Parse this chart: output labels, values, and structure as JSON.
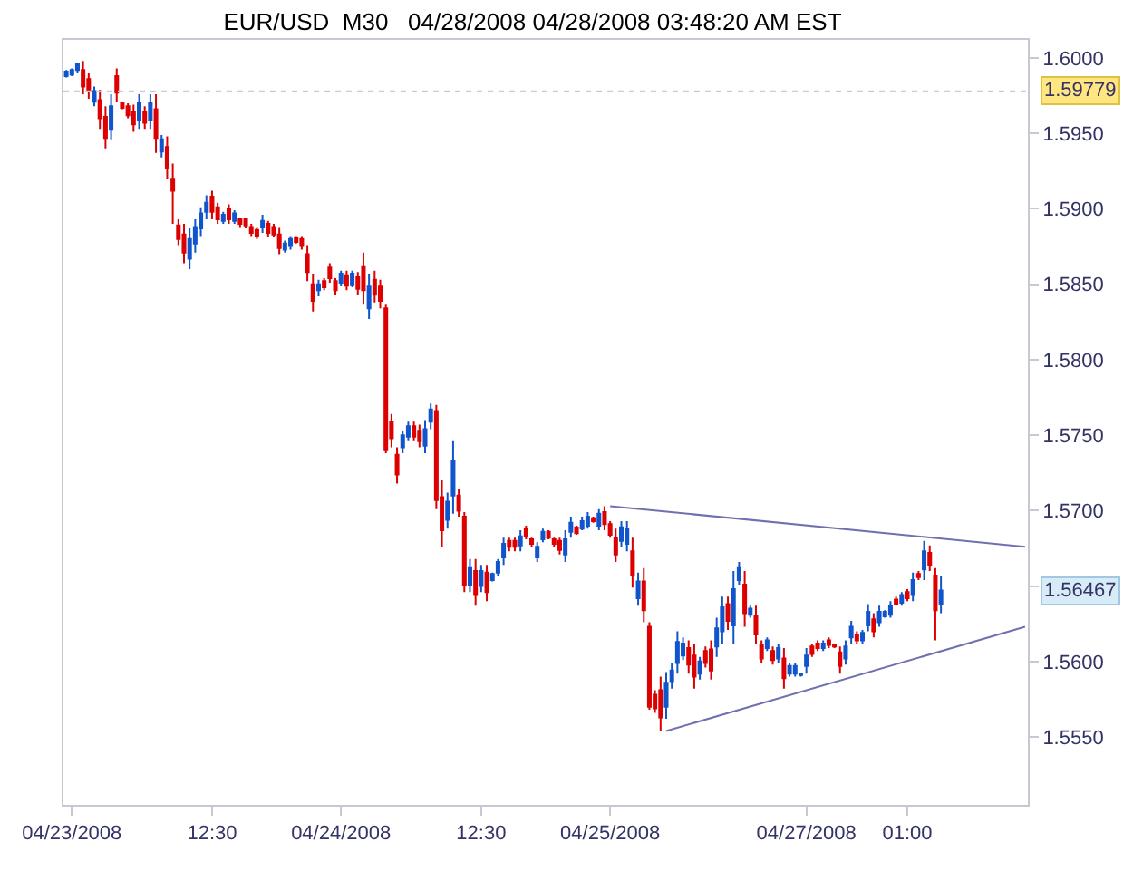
{
  "chart_data": {
    "type": "candlestick",
    "title": "EUR/USD  M30   04/28/2008 04/28/2008 03:48:20 AM EST",
    "colors": [
      "#1155cc",
      "#1155cc",
      "#1155cc",
      "#dd0000",
      "#dd0000",
      "#1155cc",
      "#dd0000",
      "#dd0000",
      "#1155cc",
      "#dd0000",
      "#dd0000",
      "#dd0000",
      "#dd0000",
      "#1155cc",
      "#dd0000",
      "#1155cc",
      "#dd0000",
      "#1155cc",
      "#dd0000",
      "#dd0000",
      "#dd0000",
      "#dd0000",
      "#1155cc",
      "#1155cc",
      "#1155cc",
      "#1155cc",
      "#dd0000",
      "#dd0000",
      "#1155cc",
      "#dd0000",
      "#1155cc",
      "#dd0000",
      "#dd0000",
      "#dd0000",
      "#dd0000",
      "#1155cc",
      "#dd0000",
      "#dd0000",
      "#dd0000",
      "#1155cc",
      "#1155cc",
      "#dd0000",
      "#dd0000",
      "#dd0000",
      "#dd0000",
      "#1155cc",
      "#dd0000",
      "#dd0000",
      "#dd0000",
      "#1155cc",
      "#dd0000",
      "#1155cc",
      "#dd0000",
      "#dd0000",
      "#1155cc",
      "#dd0000",
      "#dd0000",
      "#dd0000",
      "#dd0000",
      "#dd0000",
      "#1155cc",
      "#1155cc",
      "#dd0000",
      "#dd0000",
      "#1155cc",
      "#1155cc",
      "#dd0000",
      "#dd0000",
      "#1155cc",
      "#1155cc",
      "#dd0000",
      "#dd0000",
      "#1155cc",
      "#dd0000",
      "#1155cc",
      "#dd0000",
      "#1155cc",
      "#1155cc",
      "#1155cc",
      "#dd0000",
      "#dd0000",
      "#1155cc",
      "#dd0000",
      "#dd0000",
      "#1155cc",
      "#1155cc",
      "#dd0000",
      "#dd0000",
      "#dd0000",
      "#1155cc",
      "#1155cc",
      "#dd0000",
      "#1155cc",
      "#1155cc",
      "#dd0000",
      "#1155cc",
      "#dd0000",
      "#dd0000",
      "#dd0000",
      "#1155cc",
      "#1155cc",
      "#dd0000",
      "#1155cc",
      "#dd0000",
      "#dd0000",
      "#dd0000",
      "#dd0000",
      "#1155cc",
      "#1155cc",
      "#1155cc",
      "#1155cc",
      "#dd0000",
      "#dd0000",
      "#1155cc",
      "#dd0000",
      "#dd0000",
      "#1155cc",
      "#1155cc",
      "#dd0000",
      "#1155cc",
      "#1155cc",
      "#dd0000",
      "#1155cc",
      "#dd0000",
      "#dd0000",
      "#1155cc",
      "#dd0000",
      "#1155cc",
      "#dd0000",
      "#1155cc",
      "#1155cc",
      "#1155cc",
      "#1155cc",
      "#dd0000",
      "#dd0000",
      "#1155cc",
      "#dd0000",
      "#dd0000",
      "#dd0000",
      "#1155cc",
      "#1155cc",
      "#dd0000",
      "#1155cc",
      "#1155cc",
      "#dd0000",
      "#1155cc",
      "#1155cc",
      "#1155cc",
      "#dd0000",
      "#1155cc",
      "#dd0000",
      "#1155cc",
      "#dd0000",
      "#1155cc",
      "#dd0000",
      "#dd0000",
      "#1155cc",
      null,
      null,
      null,
      null,
      null,
      null,
      null,
      null,
      null,
      null,
      null,
      null,
      null,
      null,
      null
    ],
    "categories": [
      null,
      "04/23/2008",
      null,
      null,
      null,
      null,
      null,
      null,
      null,
      null,
      null,
      null,
      null,
      null,
      null,
      null,
      null,
      null,
      null,
      null,
      null,
      null,
      null,
      null,
      null,
      null,
      "12:30",
      null,
      null,
      null,
      null,
      null,
      null,
      null,
      null,
      null,
      null,
      null,
      null,
      null,
      null,
      null,
      null,
      null,
      null,
      null,
      null,
      null,
      null,
      "04/24/2008",
      null,
      null,
      null,
      null,
      null,
      null,
      null,
      null,
      null,
      null,
      null,
      null,
      null,
      null,
      null,
      null,
      null,
      null,
      null,
      null,
      null,
      null,
      null,
      null,
      "12:30",
      null,
      null,
      null,
      null,
      null,
      null,
      null,
      null,
      null,
      null,
      null,
      null,
      null,
      null,
      null,
      null,
      null,
      null,
      null,
      null,
      null,
      null,
      "04/25/2008",
      null,
      null,
      null,
      null,
      null,
      null,
      null,
      null,
      null,
      null,
      null,
      null,
      null,
      null,
      null,
      null,
      null,
      null,
      null,
      null,
      null,
      null,
      null,
      null,
      null,
      null,
      null,
      null,
      null,
      null,
      null,
      null,
      null,
      null,
      "04/27/2008",
      null,
      null,
      null,
      null,
      null,
      null,
      null,
      null,
      null,
      null,
      null,
      null,
      null,
      null,
      null,
      null,
      null,
      "01:00",
      null,
      null,
      null,
      null,
      null,
      null,
      null,
      null,
      null,
      null,
      null,
      null,
      null,
      null,
      null,
      null,
      null,
      null,
      null,
      null,
      null
    ],
    "ohlc": [
      [
        1.5988,
        1.5992,
        1.5987,
        1.5991
      ],
      [
        1.5989,
        1.5993,
        1.5988,
        1.5992
      ],
      [
        1.5992,
        1.5997,
        1.599,
        1.5996
      ],
      [
        1.5992,
        1.5998,
        1.5976,
        1.5981
      ],
      [
        1.5986,
        1.599,
        1.5973,
        1.5978
      ],
      [
        1.5971,
        1.5981,
        1.5968,
        1.5978
      ],
      [
        1.5972,
        1.5979,
        1.5953,
        1.596
      ],
      [
        1.5961,
        1.5968,
        1.594,
        1.5947
      ],
      [
        1.5953,
        1.5976,
        1.5946,
        1.5968
      ],
      [
        1.5988,
        1.5993,
        1.5971,
        1.5977
      ],
      [
        1.597,
        1.5971,
        1.5966,
        1.5967
      ],
      [
        1.5968,
        1.597,
        1.596,
        1.5962
      ],
      [
        1.5964,
        1.5969,
        1.5951,
        1.5956
      ],
      [
        1.5959,
        1.5976,
        1.5953,
        1.597
      ],
      [
        1.5964,
        1.5968,
        1.5953,
        1.5957
      ],
      [
        1.5959,
        1.5976,
        1.5953,
        1.597
      ],
      [
        1.5966,
        1.5976,
        1.5937,
        1.5947
      ],
      [
        1.5938,
        1.5949,
        1.5934,
        1.5946
      ],
      [
        1.5941,
        1.5948,
        1.592,
        1.5927
      ],
      [
        1.592,
        1.593,
        1.589,
        1.5912
      ],
      [
        1.5889,
        1.5893,
        1.5876,
        1.588
      ],
      [
        1.5883,
        1.589,
        1.5864,
        1.5871
      ],
      [
        1.5867,
        1.5887,
        1.586,
        1.588
      ],
      [
        1.5877,
        1.5893,
        1.5871,
        1.5888
      ],
      [
        1.5887,
        1.5901,
        1.5882,
        1.5897
      ],
      [
        1.5898,
        1.5909,
        1.5893,
        1.5904
      ],
      [
        1.5908,
        1.5912,
        1.5893,
        1.5898
      ],
      [
        1.5901,
        1.5904,
        1.589,
        1.5893
      ],
      [
        1.5892,
        1.5898,
        1.589,
        1.5896
      ],
      [
        1.59,
        1.5903,
        1.589,
        1.5893
      ],
      [
        1.5892,
        1.5899,
        1.589,
        1.5897
      ],
      [
        1.5893,
        1.5894,
        1.5888,
        1.589
      ],
      [
        1.5893,
        1.5894,
        1.5887,
        1.5889
      ],
      [
        1.5888,
        1.589,
        1.5882,
        1.5884
      ],
      [
        1.5886,
        1.5888,
        1.588,
        1.5882
      ],
      [
        1.5888,
        1.5896,
        1.5884,
        1.5892
      ],
      [
        1.589,
        1.5892,
        1.5881,
        1.5884
      ],
      [
        1.5888,
        1.589,
        1.5881,
        1.5883
      ],
      [
        1.5883,
        1.5888,
        1.587,
        1.5874
      ],
      [
        1.5873,
        1.5879,
        1.5871,
        1.5877
      ],
      [
        1.5876,
        1.5882,
        1.5873,
        1.588
      ],
      [
        1.5881,
        1.5882,
        1.5877,
        1.5878
      ],
      [
        1.588,
        1.5882,
        1.5873,
        1.5876
      ],
      [
        1.587,
        1.5876,
        1.5852,
        1.5858
      ],
      [
        1.585,
        1.5857,
        1.5832,
        1.5839
      ],
      [
        1.5846,
        1.5853,
        1.5842,
        1.585
      ],
      [
        1.5852,
        1.5854,
        1.5846,
        1.5848
      ],
      [
        1.5861,
        1.5864,
        1.5851,
        1.5854
      ],
      [
        1.5852,
        1.5854,
        1.5843,
        1.5846
      ],
      [
        1.5851,
        1.5859,
        1.5849,
        1.5857
      ],
      [
        1.5856,
        1.5859,
        1.5846,
        1.5849
      ],
      [
        1.585,
        1.5859,
        1.5848,
        1.5857
      ],
      [
        1.5855,
        1.5858,
        1.5843,
        1.5847
      ],
      [
        1.5862,
        1.5871,
        1.5837,
        1.5846
      ],
      [
        1.5834,
        1.5857,
        1.5827,
        1.5849
      ],
      [
        1.5853,
        1.5859,
        1.5838,
        1.5843
      ],
      [
        1.5849,
        1.5853,
        1.5834,
        1.5839
      ],
      [
        1.5834,
        1.5837,
        1.5738,
        1.574
      ],
      [
        1.5759,
        1.5764,
        1.5742,
        1.5748
      ],
      [
        1.5737,
        1.5742,
        1.5718,
        1.5724
      ],
      [
        1.5742,
        1.5753,
        1.5738,
        1.575
      ],
      [
        1.5749,
        1.5759,
        1.5746,
        1.5756
      ],
      [
        1.5756,
        1.5759,
        1.5746,
        1.5749
      ],
      [
        1.5753,
        1.5757,
        1.5742,
        1.5746
      ],
      [
        1.5743,
        1.576,
        1.5738,
        1.5754
      ],
      [
        1.5759,
        1.5771,
        1.5754,
        1.5767
      ],
      [
        1.5766,
        1.577,
        1.5701,
        1.5707
      ],
      [
        1.5709,
        1.572,
        1.5676,
        1.5687
      ],
      [
        1.5694,
        1.5712,
        1.5688,
        1.5706
      ],
      [
        1.571,
        1.5746,
        1.5698,
        1.5733
      ],
      [
        1.571,
        1.5714,
        1.5696,
        1.57
      ],
      [
        1.5696,
        1.5699,
        1.5646,
        1.5651
      ],
      [
        1.5651,
        1.5668,
        1.5646,
        1.5662
      ],
      [
        1.566,
        1.5668,
        1.5637,
        1.5644
      ],
      [
        1.565,
        1.5664,
        1.5646,
        1.566
      ],
      [
        1.5659,
        1.5664,
        1.564,
        1.5646
      ],
      [
        1.5654,
        1.5659,
        1.5653,
        1.5658
      ],
      [
        1.5659,
        1.5668,
        1.5657,
        1.5666
      ],
      [
        1.5669,
        1.5682,
        1.5664,
        1.5678
      ],
      [
        1.568,
        1.5682,
        1.5673,
        1.5676
      ],
      [
        1.568,
        1.5682,
        1.5673,
        1.5676
      ],
      [
        1.5677,
        1.5687,
        1.5673,
        1.5683
      ],
      [
        1.5688,
        1.569,
        1.5681,
        1.5683
      ],
      [
        1.5681,
        1.5682,
        1.5676,
        1.5678
      ],
      [
        1.5669,
        1.5679,
        1.5666,
        1.5676
      ],
      [
        1.5681,
        1.5688,
        1.5679,
        1.5686
      ],
      [
        1.5686,
        1.5687,
        1.5681,
        1.5682
      ],
      [
        1.5681,
        1.5682,
        1.5676,
        1.5678
      ],
      [
        1.568,
        1.5682,
        1.5671,
        1.5674
      ],
      [
        1.5671,
        1.5687,
        1.5666,
        1.5681
      ],
      [
        1.5686,
        1.5696,
        1.5682,
        1.5692
      ],
      [
        1.5689,
        1.569,
        1.5684,
        1.5685
      ],
      [
        1.5688,
        1.5696,
        1.5687,
        1.5693
      ],
      [
        1.569,
        1.5699,
        1.5688,
        1.5696
      ],
      [
        1.5695,
        1.5696,
        1.5692,
        1.5693
      ],
      [
        1.569,
        1.5701,
        1.5687,
        1.5698
      ],
      [
        1.5699,
        1.5703,
        1.5687,
        1.5691
      ],
      [
        1.5691,
        1.5693,
        1.5682,
        1.5684
      ],
      [
        1.5682,
        1.5688,
        1.5666,
        1.5671
      ],
      [
        1.568,
        1.5693,
        1.5676,
        1.5689
      ],
      [
        1.5678,
        1.5693,
        1.5673,
        1.5688
      ],
      [
        1.5673,
        1.5682,
        1.5649,
        1.5657
      ],
      [
        1.5642,
        1.5659,
        1.5637,
        1.5653
      ],
      [
        1.5653,
        1.5662,
        1.5626,
        1.5634
      ],
      [
        1.5623,
        1.5626,
        1.5568,
        1.557
      ],
      [
        1.5578,
        1.5581,
        1.5566,
        1.5569
      ],
      [
        1.5581,
        1.559,
        1.5554,
        1.5563
      ],
      [
        1.557,
        1.5593,
        1.5562,
        1.5586
      ],
      [
        1.5587,
        1.5599,
        1.5582,
        1.5594
      ],
      [
        1.5599,
        1.562,
        1.5592,
        1.5613
      ],
      [
        1.5604,
        1.5616,
        1.5601,
        1.5612
      ],
      [
        1.5609,
        1.5614,
        1.5592,
        1.5598
      ],
      [
        1.5604,
        1.5612,
        1.5582,
        1.559
      ],
      [
        1.5592,
        1.5603,
        1.5588,
        1.56
      ],
      [
        1.5607,
        1.561,
        1.5596,
        1.5599
      ],
      [
        1.5608,
        1.5614,
        1.5588,
        1.5594
      ],
      [
        1.561,
        1.5629,
        1.5603,
        1.5622
      ],
      [
        1.562,
        1.5643,
        1.5612,
        1.5636
      ],
      [
        1.5638,
        1.5643,
        1.5621,
        1.5627
      ],
      [
        1.5624,
        1.566,
        1.5612,
        1.5648
      ],
      [
        1.5654,
        1.5666,
        1.5651,
        1.5662
      ],
      [
        1.5651,
        1.566,
        1.5623,
        1.5632
      ],
      [
        1.5631,
        1.5637,
        1.5629,
        1.5635
      ],
      [
        1.563,
        1.5637,
        1.5612,
        1.5618
      ],
      [
        1.5611,
        1.5614,
        1.5599,
        1.5602
      ],
      [
        1.5609,
        1.5616,
        1.5607,
        1.5614
      ],
      [
        1.5607,
        1.561,
        1.5598,
        1.5601
      ],
      [
        1.5602,
        1.5612,
        1.5599,
        1.5609
      ],
      [
        1.5602,
        1.5609,
        1.5582,
        1.5589
      ],
      [
        1.5592,
        1.5599,
        1.559,
        1.5597
      ],
      [
        1.5592,
        1.5599,
        1.559,
        1.5597
      ],
      [
        1.5591,
        1.5592,
        1.559,
        1.5592
      ],
      [
        1.5597,
        1.5609,
        1.5592,
        1.5604
      ],
      [
        1.561,
        1.5612,
        1.5603,
        1.5605
      ],
      [
        1.5612,
        1.5614,
        1.5607,
        1.5609
      ],
      [
        1.5609,
        1.5614,
        1.5607,
        1.5612
      ],
      [
        1.5614,
        1.5616,
        1.5609,
        1.5611
      ],
      [
        1.5611,
        1.5612,
        1.5609,
        1.561
      ],
      [
        1.5606,
        1.561,
        1.5592,
        1.5597
      ],
      [
        1.5602,
        1.5614,
        1.5598,
        1.561
      ],
      [
        1.5616,
        1.5627,
        1.5612,
        1.5623
      ],
      [
        1.5618,
        1.562,
        1.5612,
        1.5614
      ],
      [
        1.5614,
        1.5621,
        1.5612,
        1.5619
      ],
      [
        1.5624,
        1.5638,
        1.562,
        1.5633
      ],
      [
        1.5628,
        1.5632,
        1.5616,
        1.562
      ],
      [
        1.5626,
        1.5637,
        1.5623,
        1.5633
      ],
      [
        1.563,
        1.5634,
        1.5629,
        1.5633
      ],
      [
        1.5631,
        1.564,
        1.5629,
        1.5637
      ],
      [
        1.5641,
        1.5643,
        1.5637,
        1.5638
      ],
      [
        1.5639,
        1.5646,
        1.5637,
        1.5644
      ],
      [
        1.5646,
        1.5648,
        1.564,
        1.5642
      ],
      [
        1.5644,
        1.5659,
        1.564,
        1.5654
      ],
      [
        1.5658,
        1.566,
        1.5654,
        1.5656
      ],
      [
        1.5661,
        1.568,
        1.5654,
        1.5673
      ],
      [
        1.5672,
        1.5677,
        1.566,
        1.5664
      ],
      [
        1.5657,
        1.5662,
        1.5614,
        1.5634
      ],
      [
        1.5638,
        1.5657,
        1.5632,
        1.5647
      ],
      null,
      null,
      null,
      null,
      null,
      null,
      null,
      null,
      null,
      null,
      null,
      null,
      null,
      null,
      null
    ],
    "series": [
      {
        "type": "line",
        "color": "#7070b0",
        "values": [
          null,
          null,
          null,
          null,
          null,
          null,
          null,
          null,
          null,
          null,
          null,
          null,
          null,
          null,
          null,
          null,
          null,
          null,
          null,
          null,
          null,
          null,
          null,
          null,
          null,
          null,
          null,
          null,
          null,
          null,
          null,
          null,
          null,
          null,
          null,
          null,
          null,
          null,
          null,
          null,
          null,
          null,
          null,
          null,
          null,
          null,
          null,
          null,
          null,
          null,
          null,
          null,
          null,
          null,
          null,
          null,
          null,
          null,
          null,
          null,
          null,
          null,
          null,
          null,
          null,
          null,
          null,
          null,
          null,
          null,
          null,
          null,
          null,
          null,
          null,
          null,
          null,
          null,
          null,
          null,
          null,
          null,
          null,
          null,
          null,
          null,
          null,
          null,
          null,
          null,
          null,
          null,
          null,
          null,
          null,
          null,
          null,
          1.5703,
          null,
          null,
          null,
          null,
          null,
          null,
          null,
          null,
          null,
          null,
          null,
          null,
          null,
          null,
          null,
          null,
          null,
          null,
          null,
          null,
          null,
          null,
          null,
          null,
          null,
          null,
          null,
          null,
          null,
          null,
          null,
          null,
          null,
          null,
          null,
          null,
          null,
          null,
          null,
          null,
          null,
          null,
          null,
          null,
          null,
          null,
          null,
          null,
          null,
          null,
          null,
          null,
          null,
          null,
          null,
          null,
          null,
          null,
          null,
          null,
          null,
          null,
          null,
          null,
          null,
          null,
          null,
          null,
          null,
          null,
          null,
          null,
          null,
          1.5676
        ]
      },
      {
        "type": "line",
        "color": "#7070b0",
        "values": [
          null,
          null,
          null,
          null,
          null,
          null,
          null,
          null,
          null,
          null,
          null,
          null,
          null,
          null,
          null,
          null,
          null,
          null,
          null,
          null,
          null,
          null,
          null,
          null,
          null,
          null,
          null,
          null,
          null,
          null,
          null,
          null,
          null,
          null,
          null,
          null,
          null,
          null,
          null,
          null,
          null,
          null,
          null,
          null,
          null,
          null,
          null,
          null,
          null,
          null,
          null,
          null,
          null,
          null,
          null,
          null,
          null,
          null,
          null,
          null,
          null,
          null,
          null,
          null,
          null,
          null,
          null,
          null,
          null,
          null,
          null,
          null,
          null,
          null,
          null,
          null,
          null,
          null,
          null,
          null,
          null,
          null,
          null,
          null,
          null,
          null,
          null,
          null,
          null,
          null,
          null,
          null,
          null,
          null,
          null,
          null,
          null,
          null,
          null,
          null,
          null,
          null,
          null,
          null,
          null,
          null,
          null,
          1.5554,
          null,
          null,
          null,
          null,
          null,
          null,
          null,
          null,
          null,
          null,
          null,
          null,
          null,
          null,
          null,
          null,
          null,
          null,
          null,
          null,
          null,
          null,
          null,
          null,
          null,
          null,
          null,
          null,
          null,
          null,
          null,
          null,
          null,
          null,
          null,
          null,
          null,
          null,
          null,
          null,
          null,
          null,
          null,
          null,
          null,
          null,
          null,
          null,
          null,
          null,
          null,
          null,
          null,
          null,
          null,
          null,
          null,
          null,
          null,
          null,
          null,
          null,
          null,
          1.5623
        ]
      }
    ],
    "ylim": [
      1.5505,
      1.6012
    ],
    "yticks": [
      {
        "value": 1.555,
        "label": "1.5550"
      },
      {
        "value": 1.56,
        "label": "1.5600"
      },
      {
        "value": 1.565,
        "label": null
      },
      {
        "value": 1.57,
        "label": "1.5700"
      },
      {
        "value": 1.575,
        "label": "1.5750"
      },
      {
        "value": 1.58,
        "label": "1.5800"
      },
      {
        "value": 1.585,
        "label": "1.5850"
      },
      {
        "value": 1.59,
        "label": "1.5900"
      },
      {
        "value": 1.595,
        "label": "1.5950"
      },
      {
        "value": 1.6,
        "label": "1.6000"
      }
    ],
    "ref_lines": [
      {
        "axis": "y",
        "value": 1.59779,
        "label": "1.59779",
        "color": "#cccccc",
        "line_style": "dotted"
      }
    ],
    "annotations": [
      "1.56467"
    ]
  }
}
